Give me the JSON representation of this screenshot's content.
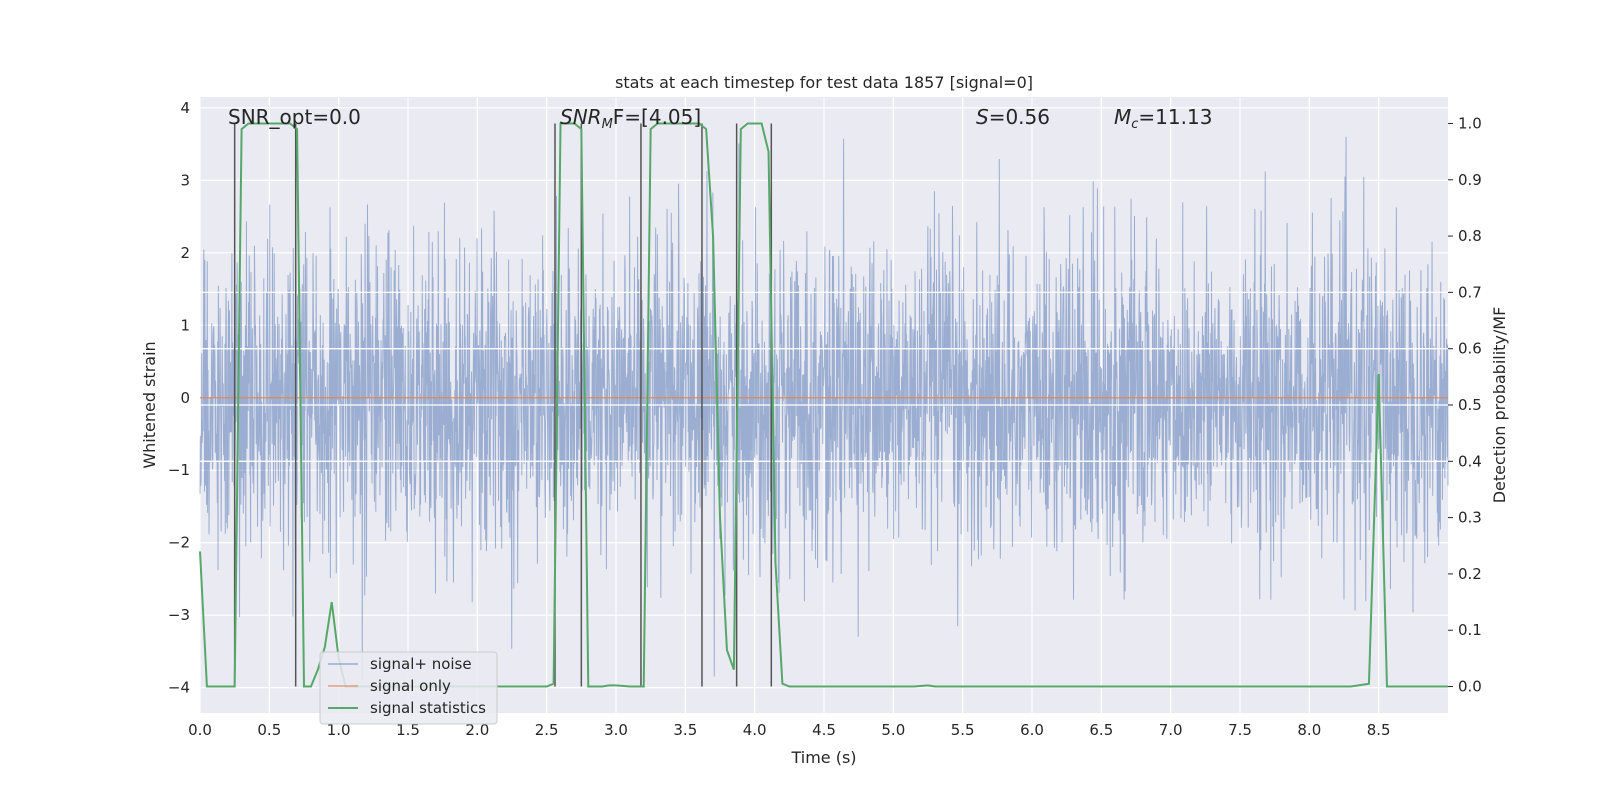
{
  "chart_data": {
    "type": "line",
    "title": "stats at each timestep for test data 1857 [signal=0]",
    "xlabel": "Time (s)",
    "ylabel_left": "Whitened strain",
    "ylabel_right": "Detection probability/MF",
    "xlim": [
      0.0,
      9.0
    ],
    "ylim_left": [
      -4.35,
      4.15
    ],
    "ylim_right": [
      -0.047,
      1.047
    ],
    "xticks": [
      "0.0",
      "0.5",
      "1.0",
      "1.5",
      "2.0",
      "2.5",
      "3.0",
      "3.5",
      "4.0",
      "4.5",
      "5.0",
      "5.5",
      "6.0",
      "6.5",
      "7.0",
      "7.5",
      "8.0",
      "8.5"
    ],
    "yticks_left": [
      "4",
      "3",
      "2",
      "1",
      "0",
      "−1",
      "−2",
      "−3",
      "−4"
    ],
    "yticks_right": [
      "1.0",
      "0.9",
      "0.8",
      "0.7",
      "0.6",
      "0.5",
      "0.4",
      "0.3",
      "0.2",
      "0.1",
      "0.0"
    ],
    "grid": true,
    "legend_position": "lower-left",
    "annotations": {
      "snr_opt": "SNR_opt=0.0",
      "snr_mf_base": "SNR",
      "snr_mf_sub": "M",
      "snr_mf_rest": "F=[4.05]",
      "s_base": "S",
      "s_value": "=0.56",
      "mc_base": "M",
      "mc_sub": "c",
      "mc_value": "=11.13"
    },
    "series": [
      {
        "name": "signal+ noise",
        "color": "#4c72b0",
        "description_values": "whitened noise strain, amplitude mostly within ±2, peaks to about ±3.6"
      },
      {
        "name": "signal only",
        "color": "#dd8452",
        "x": [
          0.0,
          9.0
        ],
        "y": [
          0.0,
          0.0
        ]
      },
      {
        "name": "signal statistics",
        "color": "#55a868",
        "x": [
          0.0,
          0.05,
          0.1,
          0.15,
          0.2,
          0.25,
          0.3,
          0.35,
          0.4,
          0.45,
          0.5,
          0.55,
          0.6,
          0.65,
          0.7,
          0.75,
          0.8,
          0.85,
          0.9,
          0.95,
          1.0,
          1.05,
          1.1,
          1.5,
          2.0,
          2.5,
          2.55,
          2.6,
          2.65,
          2.7,
          2.75,
          2.8,
          2.85,
          2.9,
          2.95,
          3.0,
          3.1,
          3.2,
          3.25,
          3.3,
          3.35,
          3.4,
          3.5,
          3.6,
          3.65,
          3.7,
          3.75,
          3.8,
          3.85,
          3.9,
          3.95,
          4.0,
          4.05,
          4.1,
          4.15,
          4.2,
          4.25,
          4.3,
          4.5,
          5.0,
          5.15,
          5.25,
          5.3,
          5.5,
          6.0,
          7.0,
          8.0,
          8.3,
          8.43,
          8.5,
          8.56,
          8.6,
          9.0
        ],
        "y": [
          0.24,
          0.0,
          0.0,
          0.0,
          0.0,
          0.0,
          0.99,
          1.0,
          1.0,
          1.0,
          1.0,
          1.0,
          1.0,
          1.0,
          0.99,
          0.0,
          0.0,
          0.03,
          0.07,
          0.15,
          0.05,
          0.0,
          0.0,
          0.0,
          0.0,
          0.0,
          0.005,
          1.0,
          1.0,
          1.0,
          0.99,
          0.0,
          0.0,
          0.0,
          0.002,
          0.002,
          0.0,
          0.0,
          0.99,
          1.0,
          1.0,
          1.0,
          1.0,
          1.0,
          0.99,
          0.8,
          0.3,
          0.065,
          0.03,
          0.99,
          1.0,
          1.0,
          1.0,
          0.95,
          0.22,
          0.005,
          0.0,
          0.0,
          0.0,
          0.0,
          0.0,
          0.002,
          0.0,
          0.0,
          0.0,
          0.0,
          0.0,
          0.0,
          0.005,
          0.555,
          0.0,
          0.0,
          0.0
        ]
      }
    ],
    "vertical_lines_x": [
      0.25,
      0.69,
      2.56,
      2.75,
      3.18,
      3.62,
      3.87,
      4.12
    ],
    "horizontal_lines_right": [
      0.7,
      0.6,
      0.5,
      0.4
    ]
  }
}
